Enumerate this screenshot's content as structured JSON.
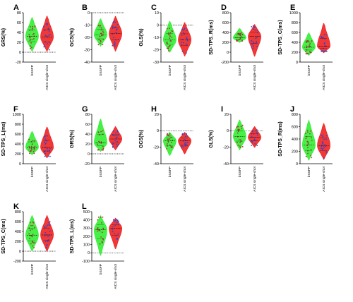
{
  "colors": {
    "group1": "#33ee33",
    "group2": "#ee2222",
    "point1": "#aa3333",
    "point2": "#3344cc",
    "zero_line": "#000000"
  },
  "chart_data": [
    {
      "letter": "A",
      "type": "violin",
      "ylabel": "GRS(%)",
      "ylim": [
        -20,
        80
      ],
      "ticks": [
        -20,
        0,
        20,
        40,
        60,
        80
      ],
      "zero_line": true,
      "categories": [
        "bSSFP",
        "AICS single-shot"
      ],
      "series": [
        {
          "name": "bSSFP",
          "median": 32,
          "min": 2,
          "max": 70
        },
        {
          "name": "AICS single-shot",
          "median": 31,
          "min": 2,
          "max": 73
        }
      ]
    },
    {
      "letter": "B",
      "type": "violin",
      "ylabel": "GCS(%)",
      "ylim": [
        -40,
        0
      ],
      "ticks": [
        -40,
        -30,
        -20,
        -10,
        0
      ],
      "zero_line": true,
      "categories": [
        "bSSFP",
        "AICS single-shot"
      ],
      "series": [
        {
          "name": "bSSFP",
          "median": -18,
          "min": -27,
          "max": -5
        },
        {
          "name": "AICS single-shot",
          "median": -17,
          "min": -31,
          "max": -3
        }
      ]
    },
    {
      "letter": "C",
      "type": "violin",
      "ylabel": "GLS(%)",
      "ylim": [
        -30,
        10
      ],
      "ticks": [
        -30,
        -20,
        -10,
        0,
        10
      ],
      "zero_line": true,
      "categories": [
        "bSSFP",
        "AICS single-shot"
      ],
      "series": [
        {
          "name": "bSSFP",
          "median": -12,
          "min": -22,
          "max": 3
        },
        {
          "name": "AICS single-shot",
          "median": -12,
          "min": -25,
          "max": 2
        }
      ]
    },
    {
      "letter": "D",
      "type": "violin",
      "ylabel": "SD-TPS_R(ms)",
      "ylim": [
        -200,
        800
      ],
      "ticks": [
        -200,
        0,
        200,
        400,
        600,
        800
      ],
      "zero_line": false,
      "categories": [
        "bSSFP",
        "AICS single-shot"
      ],
      "series": [
        {
          "name": "bSSFP",
          "median": 290,
          "min": 200,
          "max": 480
        },
        {
          "name": "AICS single-shot",
          "median": 320,
          "min": -80,
          "max": 560
        }
      ]
    },
    {
      "letter": "E",
      "type": "violin",
      "ylabel": "SD-TPS_C(ms)",
      "ylim": [
        0,
        1000
      ],
      "ticks": [
        0,
        200,
        400,
        600,
        800,
        1000
      ],
      "zero_line": false,
      "categories": [
        "bSSFP",
        "AICS single-shot"
      ],
      "series": [
        {
          "name": "bSSFP",
          "median": 300,
          "min": 140,
          "max": 590
        },
        {
          "name": "AICS single-shot",
          "median": 320,
          "min": 190,
          "max": 780
        }
      ]
    },
    {
      "letter": "F",
      "type": "violin",
      "ylabel": "SD-TPS_L(ms)",
      "ylim": [
        0,
        1000
      ],
      "ticks": [
        0,
        200,
        400,
        600,
        800,
        1000
      ],
      "zero_line": false,
      "categories": [
        "bSSFP",
        "AICS single-shot"
      ],
      "series": [
        {
          "name": "bSSFP",
          "median": 330,
          "min": 180,
          "max": 650
        },
        {
          "name": "AICS single-shot",
          "median": 330,
          "min": 120,
          "max": 740
        }
      ]
    },
    {
      "letter": "G",
      "type": "violin",
      "ylabel": "GRS(%)",
      "ylim": [
        -20,
        80
      ],
      "ticks": [
        -20,
        0,
        20,
        40,
        60,
        80
      ],
      "zero_line": true,
      "categories": [
        "bSSFP",
        "AICS single-shot"
      ],
      "series": [
        {
          "name": "bSSFP",
          "median": 22,
          "min": 5,
          "max": 70
        },
        {
          "name": "AICS single-shot",
          "median": 30,
          "min": 8,
          "max": 55
        }
      ]
    },
    {
      "letter": "H",
      "type": "violin",
      "ylabel": "GCS(%)",
      "ylim": [
        -40,
        20
      ],
      "ticks": [
        -40,
        -20,
        0,
        20
      ],
      "zero_line": true,
      "categories": [
        "bSSFP",
        "AICS single-shot"
      ],
      "series": [
        {
          "name": "bSSFP",
          "median": -12,
          "min": -30,
          "max": -2
        },
        {
          "name": "AICS single-shot",
          "median": -12,
          "min": -28,
          "max": -2
        }
      ]
    },
    {
      "letter": "I",
      "type": "violin",
      "ylabel": "GLS(%)",
      "ylim": [
        -40,
        20
      ],
      "ticks": [
        -40,
        -20,
        0,
        20
      ],
      "zero_line": true,
      "categories": [
        "bSSFP",
        "AICS single-shot"
      ],
      "series": [
        {
          "name": "bSSFP",
          "median": -7,
          "min": -23,
          "max": 13
        },
        {
          "name": "AICS single-shot",
          "median": -8,
          "min": -20,
          "max": 5
        }
      ]
    },
    {
      "letter": "J",
      "type": "violin",
      "ylabel": "SD-TPS_R(ms)",
      "ylim": [
        0,
        800
      ],
      "ticks": [
        0,
        200,
        400,
        600,
        800
      ],
      "zero_line": false,
      "categories": [
        "bSSFP",
        "AICS single-shot"
      ],
      "series": [
        {
          "name": "bSSFP",
          "median": 300,
          "min": 60,
          "max": 700
        },
        {
          "name": "AICS single-shot",
          "median": 290,
          "min": 70,
          "max": 650
        }
      ]
    },
    {
      "letter": "K",
      "type": "violin",
      "ylabel": "SD-TPS_C(ms)",
      "ylim": [
        -200,
        800
      ],
      "ticks": [
        -200,
        0,
        200,
        400,
        600,
        800
      ],
      "zero_line": true,
      "categories": [
        "bSSFP",
        "AICS single-shot"
      ],
      "series": [
        {
          "name": "bSSFP",
          "median": 320,
          "min": 0,
          "max": 720
        },
        {
          "name": "AICS single-shot",
          "median": 330,
          "min": 0,
          "max": 720
        }
      ]
    },
    {
      "letter": "L",
      "type": "violin",
      "ylabel": "SD-TPS_L(ms)",
      "ylim": [
        -100,
        500
      ],
      "ticks": [
        -100,
        0,
        100,
        200,
        300,
        400,
        500
      ],
      "zero_line": true,
      "categories": [
        "bSSFP",
        "AICS single-shot"
      ],
      "series": [
        {
          "name": "bSSFP",
          "median": 280,
          "min": -30,
          "max": 450
        },
        {
          "name": "AICS single-shot",
          "median": 300,
          "min": 50,
          "max": 420
        }
      ]
    }
  ]
}
